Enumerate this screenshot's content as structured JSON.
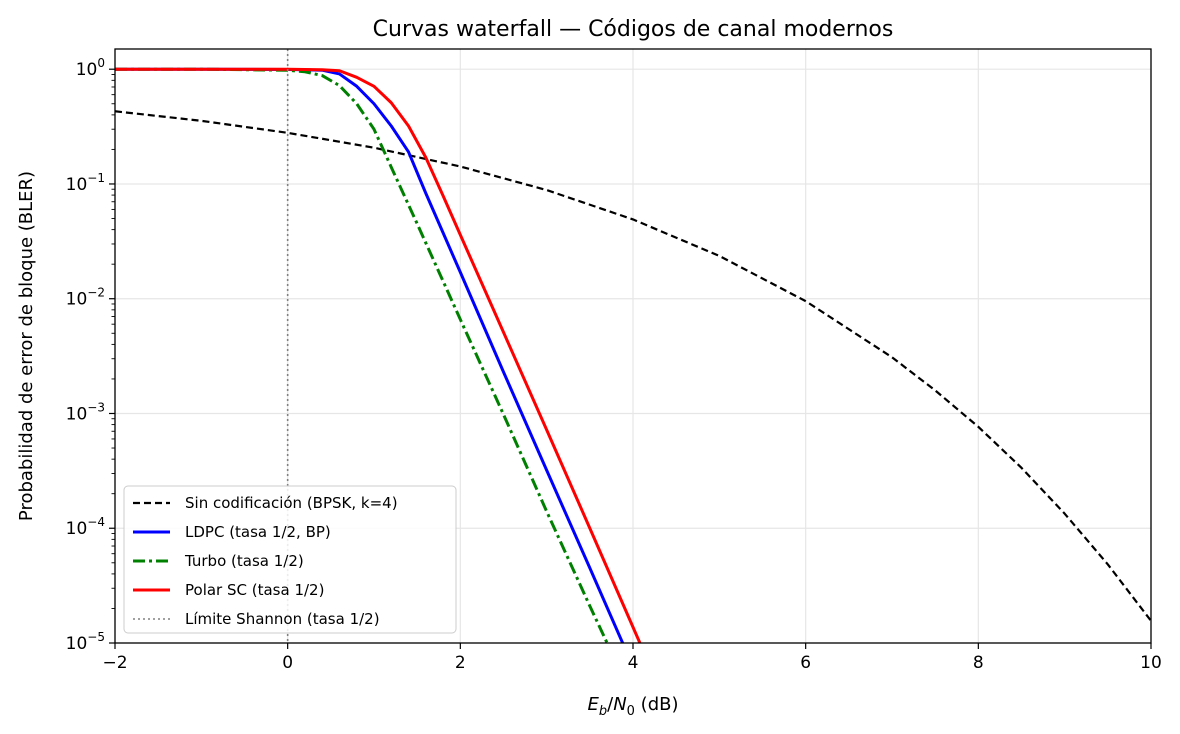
{
  "chart_data": {
    "type": "line",
    "title": "Curvas waterfall — Códigos de canal modernos",
    "xlabel_parts": {
      "E": "E",
      "b": "b",
      "slash": "/",
      "N": "N",
      "zero": "0",
      "unit": " (dB)"
    },
    "ylabel": "Probabilidad de error de bloque (BLER)",
    "xlim": [
      -2,
      10
    ],
    "ylim": [
      1e-05,
      1.5
    ],
    "yscale": "log",
    "grid": true,
    "xticks": [
      -2,
      0,
      2,
      4,
      6,
      8,
      10
    ],
    "xtick_labels": [
      "−2",
      "0",
      "2",
      "4",
      "6",
      "8",
      "10"
    ],
    "yticks": [
      1,
      0.1,
      0.01,
      0.001,
      0.0001,
      1e-05
    ],
    "ytick_exponents": [
      "0",
      "−1",
      "−2",
      "−3",
      "−4",
      "−5"
    ],
    "ytick_base": "10",
    "legend_position": "lower-left",
    "series": [
      {
        "name": "Sin codificación (BPSK, k=4)",
        "color": "#000000",
        "style": "dashed",
        "x": [
          -2,
          -1,
          0,
          1,
          2,
          3,
          4,
          5,
          6,
          7,
          7.5,
          8,
          8.5,
          9,
          9.5,
          10
        ],
        "y": [
          0.43,
          0.355,
          0.279,
          0.207,
          0.142,
          0.0885,
          0.0491,
          0.0236,
          0.00953,
          0.00309,
          0.00159,
          0.000765,
          0.000336,
          0.000134,
          4.84e-05,
          1.56e-05
        ]
      },
      {
        "name": "LDPC (tasa 1/2, BP)",
        "color": "#0000ff",
        "style": "solid",
        "x": [
          -2,
          -1,
          0,
          0.2,
          0.4,
          0.6,
          0.8,
          1.0,
          1.2,
          1.4,
          1.6,
          2.0,
          2.5,
          3.0,
          3.5,
          3.88
        ],
        "y": [
          1,
          1,
          0.995,
          0.99,
          0.98,
          0.91,
          0.71,
          0.5,
          0.32,
          0.19,
          0.083,
          0.017,
          0.0023,
          0.00032,
          4.5e-05,
          1e-05
        ]
      },
      {
        "name": "Turbo (tasa 1/2)",
        "color": "#008000",
        "style": "dashdot",
        "x": [
          -2,
          -1,
          0,
          0.2,
          0.4,
          0.6,
          0.8,
          1.0,
          1.2,
          1.5,
          2.0,
          2.5,
          3.0,
          3.5,
          3.7
        ],
        "y": [
          1,
          1,
          0.98,
          0.95,
          0.88,
          0.72,
          0.5,
          0.3,
          0.14,
          0.045,
          0.0066,
          0.00098,
          0.00014,
          2.1e-05,
          1e-05
        ]
      },
      {
        "name": "Polar SC (tasa 1/2)",
        "color": "#ff0000",
        "style": "solid",
        "x": [
          -2,
          -1,
          0,
          0.2,
          0.4,
          0.6,
          0.8,
          1.0,
          1.2,
          1.4,
          1.6,
          1.8,
          2.0,
          2.5,
          3.0,
          3.5,
          4.08
        ],
        "y": [
          1,
          1,
          0.998,
          0.995,
          0.99,
          0.97,
          0.85,
          0.71,
          0.51,
          0.32,
          0.17,
          0.079,
          0.036,
          0.0051,
          0.00072,
          0.0001,
          1e-05
        ]
      },
      {
        "name": "Límite Shannon (tasa 1/2)",
        "color": "#808080",
        "style": "dotted",
        "vline_x": 0
      }
    ]
  }
}
